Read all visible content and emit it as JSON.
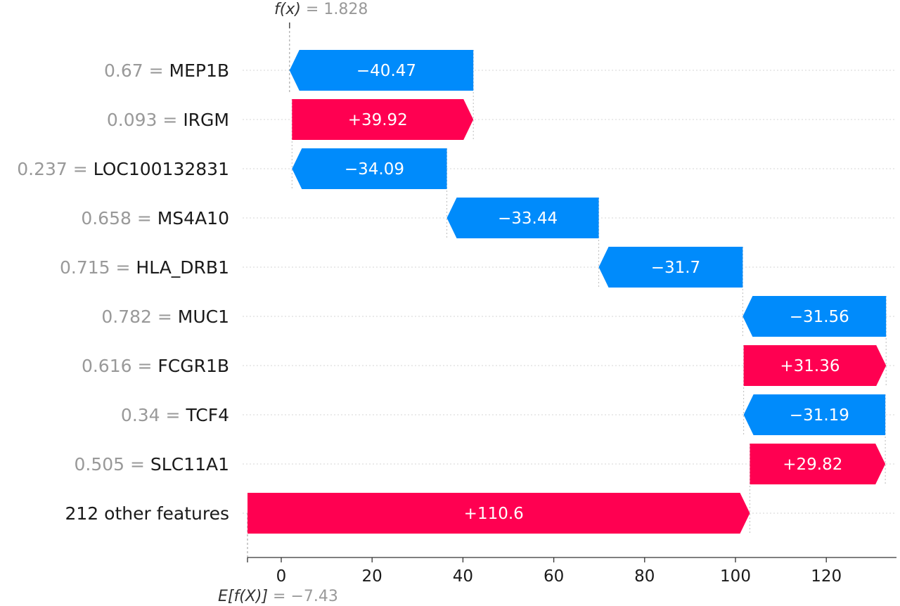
{
  "chart_data": {
    "type": "waterfall",
    "base_value_label": "E[f(X)]",
    "base_value": "−7.43",
    "base_value_number": -7.43,
    "output_value_label": "f(x)",
    "output_value": "1.828",
    "output_value_number": 1.828,
    "x_ticks": [
      "0",
      "20",
      "40",
      "60",
      "80",
      "100",
      "120"
    ],
    "x_tick_values": [
      0,
      20,
      40,
      60,
      80,
      100,
      120
    ],
    "xlim": [
      -8,
      134
    ],
    "colors": {
      "positive": "#ff0051",
      "negative": "#008bfb"
    },
    "features": [
      {
        "value": "0.67",
        "name": "MEP1B",
        "label": "−40.47",
        "contribution": -40.47
      },
      {
        "value": "0.093",
        "name": "IRGM",
        "label": "+39.92",
        "contribution": 39.92
      },
      {
        "value": "0.237",
        "name": "LOC100132831",
        "label": "−34.09",
        "contribution": -34.09
      },
      {
        "value": "0.658",
        "name": "MS4A10",
        "label": "−33.44",
        "contribution": -33.44
      },
      {
        "value": "0.715",
        "name": "HLA_DRB1",
        "label": "−31.7",
        "contribution": -31.7
      },
      {
        "value": "0.782",
        "name": "MUC1",
        "label": "−31.56",
        "contribution": -31.56
      },
      {
        "value": "0.616",
        "name": "FCGR1B",
        "label": "+31.36",
        "contribution": 31.36
      },
      {
        "value": "0.34",
        "name": "TCF4",
        "label": "−31.19",
        "contribution": -31.19
      },
      {
        "value": "0.505",
        "name": "SLC11A1",
        "label": "+29.82",
        "contribution": 29.82
      },
      {
        "value": "",
        "name": "212 other features",
        "label": "+110.6",
        "contribution": 110.6
      }
    ]
  }
}
